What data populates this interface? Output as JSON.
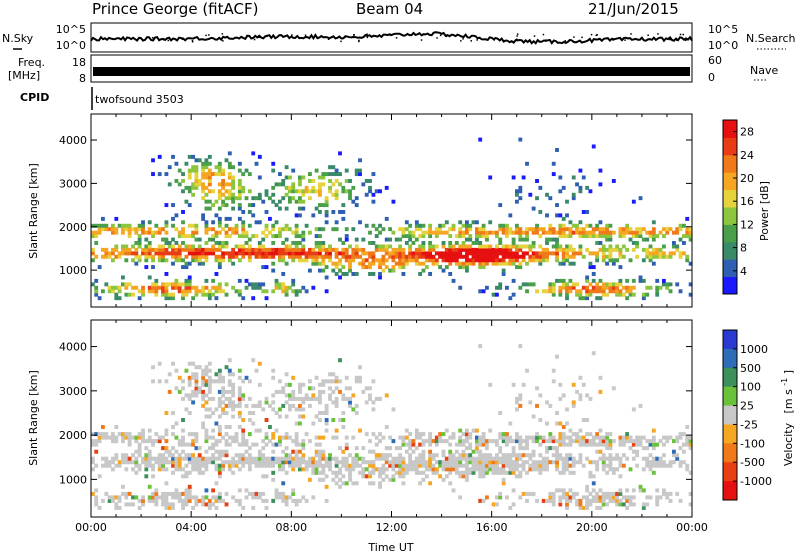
{
  "header": {
    "station": "Prince George (fitACF)",
    "beam": "Beam 04",
    "date": "21/Jun/2015"
  },
  "chart_data": [
    {
      "type": "line",
      "name": "noise-panel",
      "left_label": "N.Sky",
      "right_label": "N.Search",
      "left_ticks": [
        "10^5",
        "10^0"
      ],
      "right_ticks": [
        "10^5",
        "10^0"
      ]
    },
    {
      "type": "line",
      "name": "frequency-panel",
      "left_label_top": "Freq.",
      "left_label_bottom": "[MHz]",
      "right_label": "Nave",
      "left_ticks": [
        "18",
        "8"
      ],
      "right_ticks": [
        "60",
        "0"
      ]
    },
    {
      "type": "table",
      "name": "cpid-panel",
      "label": "CPID",
      "program": "twofsound 3503"
    },
    {
      "type": "heatmap",
      "name": "power-panel",
      "ylabel": "Slant Range [km]",
      "ylim": [
        150,
        4600
      ],
      "yticks": [
        "1000",
        "2000",
        "3000",
        "4000"
      ],
      "xlim": [
        0,
        24
      ],
      "colorbar": {
        "label": "Power [dB]",
        "ticks": [
          "4",
          "8",
          "12",
          "16",
          "20",
          "24",
          "28"
        ],
        "colors": [
          "#1a1aff",
          "#2f5fb0",
          "#3a8a6a",
          "#4aa04a",
          "#8cc63f",
          "#e6d23c",
          "#f5a623",
          "#f07a1a",
          "#e83c16",
          "#e61010"
        ]
      }
    },
    {
      "type": "heatmap",
      "name": "velocity-panel",
      "ylabel": "Slant Range [km]",
      "ylim": [
        150,
        4600
      ],
      "yticks": [
        "1000",
        "2000",
        "3000",
        "4000"
      ],
      "xlim": [
        0,
        24
      ],
      "xlabel": "Time UT",
      "xticks": [
        "00:00",
        "04:00",
        "08:00",
        "12:00",
        "16:00",
        "20:00",
        "00:00"
      ],
      "colorbar": {
        "label_main": "Velocity",
        "label_unit": "[m s",
        "label_exp": "-1",
        "label_close": "]",
        "ticks": [
          "1000",
          "500",
          "100",
          "25",
          "-25",
          "-100",
          "-500",
          "-1000"
        ],
        "colors": [
          "#2a3ad0",
          "#2f6cb8",
          "#3d8f5c",
          "#6ac23a",
          "#c8c8c8",
          "#f5a623",
          "#f07a1a",
          "#e84010",
          "#e61010"
        ]
      }
    }
  ]
}
